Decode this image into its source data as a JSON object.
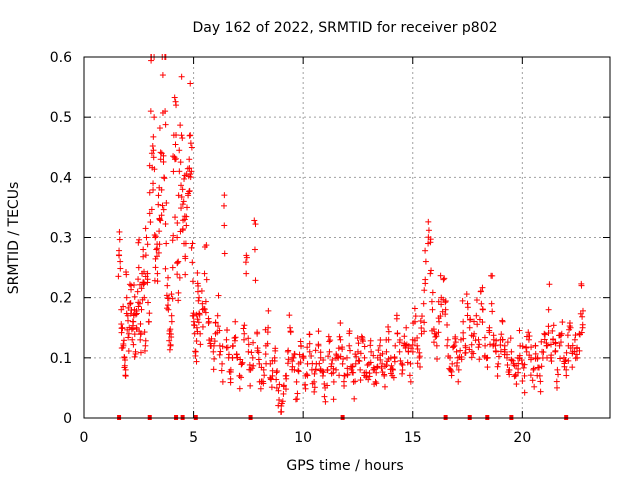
{
  "chart_data": {
    "type": "scatter",
    "title": "Day 162 of 2022, SRMTID for receiver p802",
    "xlabel": "GPS time / hours",
    "ylabel": "SRMTID / TECUs",
    "xlim": [
      0,
      24
    ],
    "ylim": [
      0,
      0.6
    ],
    "xticks": [
      0,
      5,
      10,
      15,
      20
    ],
    "xtick_labels": [
      "0",
      "5",
      "10",
      "15",
      "20"
    ],
    "yticks": [
      0,
      0.1,
      0.2,
      0.3,
      0.4,
      0.5,
      0.6
    ],
    "ytick_labels": [
      "0",
      "0.1",
      "0.2",
      "0.3",
      "0.4",
      "0.5",
      "0.6"
    ],
    "grid": true,
    "marker": "+",
    "color": "#ff0000",
    "series": [
      {
        "name": "SRMTID",
        "points": [
          [
            1.6,
            0.27
          ],
          [
            1.65,
            0.26
          ],
          [
            1.7,
            0.18
          ],
          [
            1.75,
            0.15
          ],
          [
            1.8,
            0.12
          ],
          [
            1.85,
            0.1
          ],
          [
            1.9,
            0.08
          ],
          [
            1.95,
            0.2
          ],
          [
            2.0,
            0.17
          ],
          [
            2.05,
            0.14
          ],
          [
            2.1,
            0.19
          ],
          [
            2.15,
            0.22
          ],
          [
            2.2,
            0.13
          ],
          [
            2.25,
            0.16
          ],
          [
            2.3,
            0.18
          ],
          [
            2.35,
            0.11
          ],
          [
            2.4,
            0.15
          ],
          [
            2.45,
            0.21
          ],
          [
            2.5,
            0.25
          ],
          [
            2.55,
            0.19
          ],
          [
            2.6,
            0.14
          ],
          [
            2.65,
            0.24
          ],
          [
            2.7,
            0.28
          ],
          [
            2.75,
            0.2
          ],
          [
            2.8,
            0.12
          ],
          [
            2.85,
            0.3
          ],
          [
            2.9,
            0.24
          ],
          [
            2.95,
            0.16
          ],
          [
            3.0,
            0.34
          ],
          [
            3.05,
            0.51
          ],
          [
            3.1,
            0.44
          ],
          [
            3.15,
            0.39
          ],
          [
            3.2,
            0.5
          ],
          [
            3.25,
            0.3
          ],
          [
            3.3,
            0.28
          ],
          [
            3.35,
            0.24
          ],
          [
            3.4,
            0.37
          ],
          [
            3.45,
            0.33
          ],
          [
            3.5,
            0.43
          ],
          [
            3.55,
            0.44
          ],
          [
            3.6,
            0.57
          ],
          [
            3.65,
            0.4
          ],
          [
            3.7,
            0.51
          ],
          [
            3.75,
            0.29
          ],
          [
            3.8,
            0.22
          ],
          [
            3.85,
            0.18
          ],
          [
            3.9,
            0.14
          ],
          [
            3.95,
            0.12
          ],
          [
            4.0,
            0.17
          ],
          [
            4.05,
            0.25
          ],
          [
            4.1,
            0.47
          ],
          [
            4.15,
            0.43
          ],
          [
            4.2,
            0.52
          ],
          [
            4.25,
            0.3
          ],
          [
            4.3,
            0.26
          ],
          [
            4.35,
            0.41
          ],
          [
            4.4,
            0.31
          ],
          [
            4.45,
            0.47
          ],
          [
            4.5,
            0.38
          ],
          [
            4.55,
            0.36
          ],
          [
            4.6,
            0.33
          ],
          [
            4.65,
            0.29
          ],
          [
            4.7,
            0.35
          ],
          [
            4.75,
            0.37
          ],
          [
            4.8,
            0.43
          ],
          [
            4.85,
            0.47
          ],
          [
            4.9,
            0.41
          ],
          [
            4.95,
            0.29
          ],
          [
            5.0,
            0.17
          ],
          [
            5.05,
            0.14
          ],
          [
            5.1,
            0.11
          ],
          [
            5.15,
            0.15
          ],
          [
            5.2,
            0.21
          ],
          [
            5.25,
            0.2
          ],
          [
            5.3,
            0.14
          ],
          [
            5.4,
            0.19
          ],
          [
            5.5,
            0.24
          ],
          [
            5.6,
            0.23
          ],
          [
            5.7,
            0.16
          ],
          [
            5.8,
            0.12
          ],
          [
            5.9,
            0.11
          ],
          [
            6.0,
            0.14
          ],
          [
            6.1,
            0.17
          ],
          [
            6.2,
            0.12
          ],
          [
            6.3,
            0.09
          ],
          [
            6.4,
            0.32
          ],
          [
            6.5,
            0.13
          ],
          [
            6.6,
            0.1
          ],
          [
            6.7,
            0.08
          ],
          [
            6.8,
            0.12
          ],
          [
            6.9,
            0.16
          ],
          [
            7.0,
            0.1
          ],
          [
            7.1,
            0.07
          ],
          [
            7.2,
            0.09
          ],
          [
            7.3,
            0.13
          ],
          [
            7.4,
            0.24
          ],
          [
            7.5,
            0.11
          ],
          [
            7.6,
            0.08
          ],
          [
            7.7,
            0.1
          ],
          [
            7.8,
            0.28
          ],
          [
            7.9,
            0.14
          ],
          [
            8.0,
            0.09
          ],
          [
            8.1,
            0.06
          ],
          [
            8.2,
            0.08
          ],
          [
            8.3,
            0.12
          ],
          [
            8.4,
            0.15
          ],
          [
            8.5,
            0.09
          ],
          [
            8.6,
            0.07
          ],
          [
            8.7,
            0.1
          ],
          [
            8.8,
            0.05
          ],
          [
            8.9,
            0.03
          ],
          [
            9.0,
            0.02
          ],
          [
            9.1,
            0.04
          ],
          [
            9.2,
            0.07
          ],
          [
            9.3,
            0.11
          ],
          [
            9.4,
            0.15
          ],
          [
            9.5,
            0.1
          ],
          [
            9.6,
            0.08
          ],
          [
            9.7,
            0.06
          ],
          [
            9.8,
            0.09
          ],
          [
            9.9,
            0.12
          ],
          [
            10.0,
            0.1
          ],
          [
            10.1,
            0.07
          ],
          [
            10.2,
            0.09
          ],
          [
            10.3,
            0.11
          ],
          [
            10.4,
            0.08
          ],
          [
            10.5,
            0.06
          ],
          [
            10.6,
            0.09
          ],
          [
            10.7,
            0.12
          ],
          [
            10.8,
            0.1
          ],
          [
            10.9,
            0.07
          ],
          [
            11.0,
            0.05
          ],
          [
            11.1,
            0.08
          ],
          [
            11.2,
            0.11
          ],
          [
            11.3,
            0.09
          ],
          [
            11.4,
            0.06
          ],
          [
            11.5,
            0.08
          ],
          [
            11.6,
            0.1
          ],
          [
            11.7,
            0.13
          ],
          [
            11.8,
            0.09
          ],
          [
            11.9,
            0.07
          ],
          [
            12.0,
            0.1
          ],
          [
            12.1,
            0.12
          ],
          [
            12.2,
            0.08
          ],
          [
            12.3,
            0.06
          ],
          [
            12.4,
            0.09
          ],
          [
            12.5,
            0.11
          ],
          [
            12.6,
            0.08
          ],
          [
            12.7,
            0.13
          ],
          [
            12.8,
            0.1
          ],
          [
            12.9,
            0.07
          ],
          [
            13.0,
            0.09
          ],
          [
            13.1,
            0.11
          ],
          [
            13.2,
            0.08
          ],
          [
            13.3,
            0.06
          ],
          [
            13.4,
            0.1
          ],
          [
            13.5,
            0.12
          ],
          [
            13.6,
            0.09
          ],
          [
            13.7,
            0.07
          ],
          [
            13.8,
            0.11
          ],
          [
            13.9,
            0.13
          ],
          [
            14.0,
            0.1
          ],
          [
            14.1,
            0.08
          ],
          [
            14.2,
            0.12
          ],
          [
            14.3,
            0.14
          ],
          [
            14.4,
            0.11
          ],
          [
            14.5,
            0.09
          ],
          [
            14.6,
            0.12
          ],
          [
            14.7,
            0.15
          ],
          [
            14.8,
            0.11
          ],
          [
            14.9,
            0.09
          ],
          [
            15.0,
            0.13
          ],
          [
            15.1,
            0.16
          ],
          [
            15.2,
            0.12
          ],
          [
            15.3,
            0.1
          ],
          [
            15.4,
            0.14
          ],
          [
            15.5,
            0.19
          ],
          [
            15.6,
            0.26
          ],
          [
            15.7,
            0.29
          ],
          [
            15.8,
            0.24
          ],
          [
            15.9,
            0.18
          ],
          [
            16.0,
            0.14
          ],
          [
            16.1,
            0.12
          ],
          [
            16.2,
            0.16
          ],
          [
            16.3,
            0.2
          ],
          [
            16.4,
            0.23
          ],
          [
            16.5,
            0.18
          ],
          [
            16.6,
            0.13
          ],
          [
            16.7,
            0.1
          ],
          [
            16.8,
            0.09
          ],
          [
            16.9,
            0.12
          ],
          [
            17.0,
            0.11
          ],
          [
            17.1,
            0.08
          ],
          [
            17.2,
            0.13
          ],
          [
            17.3,
            0.16
          ],
          [
            17.4,
            0.12
          ],
          [
            17.5,
            0.19
          ],
          [
            17.6,
            0.15
          ],
          [
            17.7,
            0.11
          ],
          [
            17.8,
            0.14
          ],
          [
            17.9,
            0.17
          ],
          [
            18.0,
            0.13
          ],
          [
            18.1,
            0.21
          ],
          [
            18.2,
            0.18
          ],
          [
            18.3,
            0.12
          ],
          [
            18.4,
            0.1
          ],
          [
            18.5,
            0.15
          ],
          [
            18.6,
            0.19
          ],
          [
            18.7,
            0.13
          ],
          [
            18.8,
            0.11
          ],
          [
            18.9,
            0.09
          ],
          [
            19.0,
            0.13
          ],
          [
            19.1,
            0.16
          ],
          [
            19.2,
            0.12
          ],
          [
            19.3,
            0.1
          ],
          [
            19.4,
            0.08
          ],
          [
            19.5,
            0.11
          ],
          [
            19.6,
            0.09
          ],
          [
            19.7,
            0.07
          ],
          [
            19.8,
            0.1
          ],
          [
            19.9,
            0.12
          ],
          [
            20.0,
            0.09
          ],
          [
            20.1,
            0.07
          ],
          [
            20.2,
            0.11
          ],
          [
            20.3,
            0.13
          ],
          [
            20.4,
            0.1
          ],
          [
            20.5,
            0.08
          ],
          [
            20.6,
            0.12
          ],
          [
            20.7,
            0.1
          ],
          [
            20.8,
            0.07
          ],
          [
            20.9,
            0.11
          ],
          [
            21.0,
            0.14
          ],
          [
            21.1,
            0.12
          ],
          [
            21.2,
            0.18
          ],
          [
            21.3,
            0.1
          ],
          [
            21.4,
            0.13
          ],
          [
            21.5,
            0.11
          ],
          [
            21.6,
            0.08
          ],
          [
            21.7,
            0.12
          ],
          [
            21.8,
            0.14
          ],
          [
            21.9,
            0.1
          ],
          [
            22.0,
            0.08
          ],
          [
            22.1,
            0.12
          ],
          [
            22.2,
            0.15
          ],
          [
            22.3,
            0.11
          ],
          [
            22.4,
            0.13
          ],
          [
            22.5,
            0.1
          ],
          [
            22.6,
            0.14
          ],
          [
            22.7,
            0.22
          ],
          [
            22.75,
            0.15
          ]
        ]
      }
    ],
    "baseline_markers_x": [
      1.6,
      3.0,
      4.2,
      4.5,
      5.1,
      7.6,
      11.8,
      16.5,
      17.6,
      18.4,
      19.5,
      22.0
    ]
  }
}
